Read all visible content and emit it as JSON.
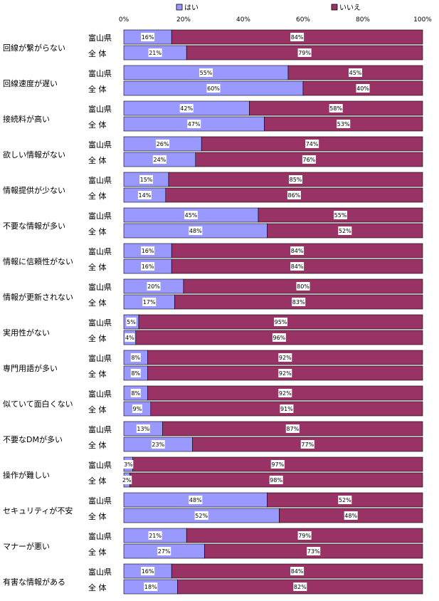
{
  "chart_data": {
    "type": "bar",
    "orientation": "horizontal",
    "stacked": "percent",
    "xlim": [
      0,
      100
    ],
    "x_ticks": [
      "0%",
      "20%",
      "40%",
      "60%",
      "80%",
      "100%"
    ],
    "legend_position": "top",
    "series_names": [
      "はい",
      "いいえ"
    ],
    "colors": {
      "yes": "#9999ff",
      "no": "#993366"
    },
    "group_labels": [
      "富山県",
      "全 体"
    ],
    "categories": [
      {
        "label": "回線が繋がらない",
        "rows": [
          {
            "yes": 16,
            "no": 84,
            "yes_label": "16%",
            "no_label": "84%"
          },
          {
            "yes": 21,
            "no": 79,
            "yes_label": "21%",
            "no_label": "79%"
          }
        ]
      },
      {
        "label": "回線速度が遅い",
        "rows": [
          {
            "yes": 55,
            "no": 45,
            "yes_label": "55%",
            "no_label": "45%"
          },
          {
            "yes": 60,
            "no": 40,
            "yes_label": "60%",
            "no_label": "40%"
          }
        ]
      },
      {
        "label": "接続料が高い",
        "rows": [
          {
            "yes": 42,
            "no": 58,
            "yes_label": "42%",
            "no_label": "58%"
          },
          {
            "yes": 47,
            "no": 53,
            "yes_label": "47%",
            "no_label": "53%"
          }
        ]
      },
      {
        "label": "欲しい情報がない",
        "rows": [
          {
            "yes": 26,
            "no": 74,
            "yes_label": "26%",
            "no_label": "74%"
          },
          {
            "yes": 24,
            "no": 76,
            "yes_label": "24%",
            "no_label": "76%"
          }
        ]
      },
      {
        "label": "情報提供が少ない",
        "rows": [
          {
            "yes": 15,
            "no": 85,
            "yes_label": "15%",
            "no_label": "85%"
          },
          {
            "yes": 14,
            "no": 86,
            "yes_label": "14%",
            "no_label": "86%"
          }
        ]
      },
      {
        "label": "不要な情報が多い",
        "rows": [
          {
            "yes": 45,
            "no": 55,
            "yes_label": "45%",
            "no_label": "55%"
          },
          {
            "yes": 48,
            "no": 52,
            "yes_label": "48%",
            "no_label": "52%"
          }
        ]
      },
      {
        "label": "情報に信頼性がない",
        "rows": [
          {
            "yes": 16,
            "no": 84,
            "yes_label": "16%",
            "no_label": "84%"
          },
          {
            "yes": 16,
            "no": 84,
            "yes_label": "16%",
            "no_label": "84%"
          }
        ]
      },
      {
        "label": "情報が更新されない",
        "rows": [
          {
            "yes": 20,
            "no": 80,
            "yes_label": "20%",
            "no_label": "80%"
          },
          {
            "yes": 17,
            "no": 83,
            "yes_label": "17%",
            "no_label": "83%"
          }
        ]
      },
      {
        "label": "実用性がない",
        "rows": [
          {
            "yes": 5,
            "no": 95,
            "yes_label": "5%",
            "no_label": "95%"
          },
          {
            "yes": 4,
            "no": 96,
            "yes_label": "4%",
            "no_label": "96%"
          }
        ]
      },
      {
        "label": "専門用語が多い",
        "rows": [
          {
            "yes": 8,
            "no": 92,
            "yes_label": "8%",
            "no_label": "92%"
          },
          {
            "yes": 8,
            "no": 92,
            "yes_label": "8%",
            "no_label": "92%"
          }
        ]
      },
      {
        "label": "似ていて面白くない",
        "rows": [
          {
            "yes": 8,
            "no": 92,
            "yes_label": "8%",
            "no_label": "92%"
          },
          {
            "yes": 9,
            "no": 91,
            "yes_label": "9%",
            "no_label": "91%"
          }
        ]
      },
      {
        "label": "不要なDMが多い",
        "rows": [
          {
            "yes": 13,
            "no": 87,
            "yes_label": "13%",
            "no_label": "87%"
          },
          {
            "yes": 23,
            "no": 77,
            "yes_label": "23%",
            "no_label": "77%"
          }
        ]
      },
      {
        "label": "操作が難しい",
        "rows": [
          {
            "yes": 3,
            "no": 97,
            "yes_label": "3%",
            "no_label": "97%"
          },
          {
            "yes": 2,
            "no": 98,
            "yes_label": "2%",
            "no_label": "98%"
          }
        ]
      },
      {
        "label": "セキュリティが不安",
        "rows": [
          {
            "yes": 48,
            "no": 52,
            "yes_label": "48%",
            "no_label": "52%"
          },
          {
            "yes": 52,
            "no": 48,
            "yes_label": "52%",
            "no_label": "48%"
          }
        ]
      },
      {
        "label": "マナーが悪い",
        "rows": [
          {
            "yes": 21,
            "no": 79,
            "yes_label": "21%",
            "no_label": "79%"
          },
          {
            "yes": 27,
            "no": 73,
            "yes_label": "27%",
            "no_label": "73%"
          }
        ]
      },
      {
        "label": "有害な情報がある",
        "rows": [
          {
            "yes": 16,
            "no": 84,
            "yes_label": "16%",
            "no_label": "84%"
          },
          {
            "yes": 18,
            "no": 82,
            "yes_label": "18%",
            "no_label": "82%"
          }
        ]
      }
    ]
  }
}
